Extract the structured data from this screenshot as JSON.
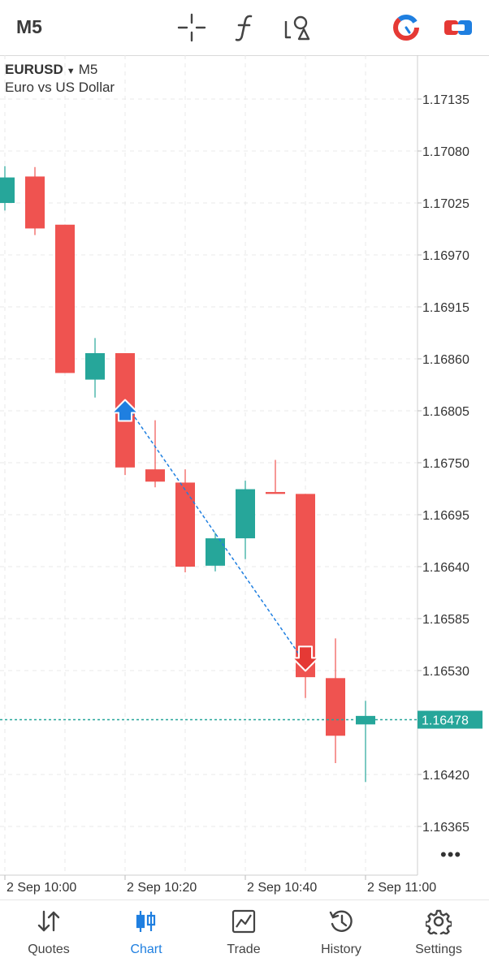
{
  "toolbar": {
    "timeframe": "M5",
    "icons": [
      "crosshair-icon",
      "indicators-icon",
      "objects-icon",
      "trade-timer-icon",
      "one-click-trading-icon"
    ]
  },
  "symbol": {
    "name": "EURUSD",
    "period": "M5",
    "description": "Euro vs US Dollar"
  },
  "chart_data": {
    "type": "candlestick",
    "price_axis": [
      "1.17135",
      "1.17080",
      "1.17025",
      "1.16970",
      "1.16915",
      "1.16860",
      "1.16805",
      "1.16750",
      "1.16695",
      "1.16640",
      "1.16585",
      "1.16530",
      "1.16420",
      "1.16365"
    ],
    "time_axis": [
      "2 Sep 10:00",
      "2 Sep 10:20",
      "2 Sep 10:40",
      "2 Sep 11:00"
    ],
    "current_price": "1.16478",
    "candles": [
      {
        "o": 1.17025,
        "h": 1.17064,
        "l": 1.17017,
        "c": 1.17052
      },
      {
        "o": 1.17053,
        "h": 1.17063,
        "l": 1.16991,
        "c": 1.16998
      },
      {
        "o": 1.17002,
        "h": 1.17002,
        "l": 1.16845,
        "c": 1.16845
      },
      {
        "o": 1.16838,
        "h": 1.16882,
        "l": 1.16819,
        "c": 1.16866
      },
      {
        "o": 1.16866,
        "h": 1.16866,
        "l": 1.16737,
        "c": 1.16745
      },
      {
        "o": 1.16743,
        "h": 1.16795,
        "l": 1.16724,
        "c": 1.1673
      },
      {
        "o": 1.16729,
        "h": 1.16743,
        "l": 1.16634,
        "c": 1.1664
      },
      {
        "o": 1.16641,
        "h": 1.16676,
        "l": 1.16635,
        "c": 1.1667
      },
      {
        "o": 1.1667,
        "h": 1.16731,
        "l": 1.16648,
        "c": 1.16722
      },
      {
        "o": 1.16719,
        "h": 1.16753,
        "l": 1.16719,
        "c": 1.16717
      },
      {
        "o": 1.16717,
        "h": 1.16717,
        "l": 1.16501,
        "c": 1.16523
      },
      {
        "o": 1.16522,
        "h": 1.16564,
        "l": 1.16432,
        "c": 1.16461
      },
      {
        "o": 1.16473,
        "h": 1.16498,
        "l": 1.16412,
        "c": 1.16482
      }
    ],
    "trade": {
      "buy_candle": 4,
      "buy_price": 1.16808,
      "sell_candle": 10,
      "sell_price": 1.1654
    }
  },
  "colors": {
    "bull": "#26a69a",
    "bear": "#ef5350",
    "buy_arrow": "#1f7fe0",
    "sell_arrow": "#e53935",
    "grid": "#e8e8e8",
    "active_tab": "#1f7fe0"
  },
  "more_label": "•••",
  "nav": [
    {
      "label": "Quotes",
      "icon": "quotes-icon"
    },
    {
      "label": "Chart",
      "icon": "chart-icon",
      "active": true
    },
    {
      "label": "Trade",
      "icon": "trade-icon"
    },
    {
      "label": "History",
      "icon": "history-icon"
    },
    {
      "label": "Settings",
      "icon": "settings-icon"
    }
  ]
}
